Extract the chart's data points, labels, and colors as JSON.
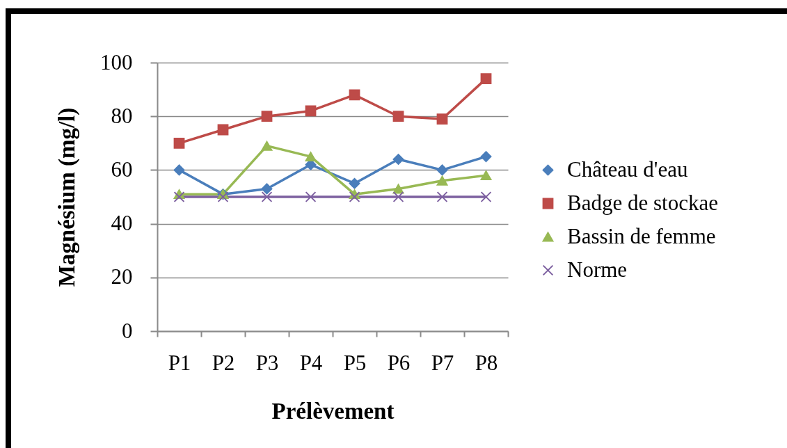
{
  "chart_data": {
    "type": "line",
    "xlabel": "Prélèvement",
    "ylabel": "Magnésium (mg/l)",
    "categories": [
      "P1",
      "P2",
      "P3",
      "P4",
      "P5",
      "P6",
      "P7",
      "P8"
    ],
    "ylim": [
      0,
      100
    ],
    "yticks": [
      0,
      20,
      40,
      60,
      80,
      100
    ],
    "grid": "y",
    "legend": "right",
    "series": [
      {
        "name": "Château d'eau",
        "color": "#4a7ebb",
        "marker": "diamond",
        "values": [
          60,
          51,
          53,
          62,
          55,
          64,
          60,
          65
        ]
      },
      {
        "name": "Badge de stockae",
        "color": "#be4b48",
        "marker": "square",
        "values": [
          70,
          75,
          80,
          82,
          88,
          80,
          79,
          94
        ]
      },
      {
        "name": "Bassin de femme",
        "color": "#98b954",
        "marker": "triangle",
        "values": [
          51,
          51,
          69,
          65,
          51,
          53,
          56,
          58
        ]
      },
      {
        "name": "Norme",
        "color": "#7d60a0",
        "marker": "cross",
        "values": [
          50,
          50,
          50,
          50,
          50,
          50,
          50,
          50
        ]
      }
    ]
  }
}
